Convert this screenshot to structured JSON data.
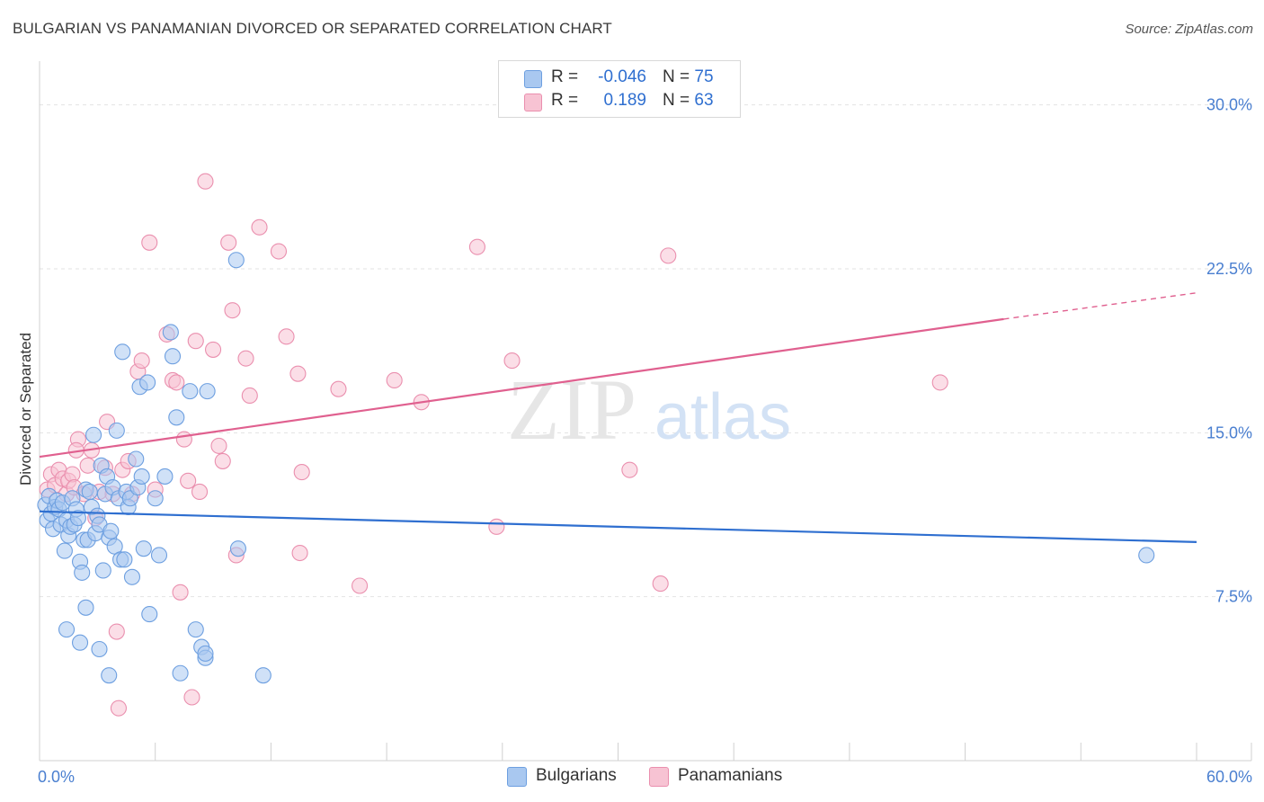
{
  "title": "BULGARIAN VS PANAMANIAN DIVORCED OR SEPARATED CORRELATION CHART",
  "source": "Source: ZipAtlas.com",
  "watermark": {
    "zip": "ZIP",
    "atlas": "atlas"
  },
  "legend": {
    "rows": [
      {
        "r_label": "R =",
        "r_value": "-0.046",
        "n_label": "N =",
        "n_value": "75",
        "color": "#a9c8f0",
        "border": "#6d9fe0"
      },
      {
        "r_label": "R =",
        "r_value": "0.189",
        "n_label": "N =",
        "n_value": "63",
        "color": "#f7c3d3",
        "border": "#ea8fae"
      }
    ]
  },
  "bottom_legend": [
    {
      "label": "Bulgarians",
      "color": "#a9c8f0",
      "border": "#6d9fe0"
    },
    {
      "label": "Panamanians",
      "color": "#f7c3d3",
      "border": "#ea8fae"
    }
  ],
  "chart_data": {
    "type": "scatter",
    "title": "BULGARIAN VS PANAMANIAN DIVORCED OR SEPARATED CORRELATION CHART",
    "xlabel": "",
    "ylabel": "Divorced or Separated",
    "xlim": [
      0,
      60
    ],
    "ylim": [
      0,
      32
    ],
    "x_tick_labels": [
      "0.0%",
      "60.0%"
    ],
    "y_ticks": [
      7.5,
      15.0,
      22.5,
      30.0
    ],
    "y_tick_labels": [
      "7.5%",
      "15.0%",
      "22.5%",
      "30.0%"
    ],
    "grid": "horizontal dashed",
    "legend_position": "top-center",
    "series": [
      {
        "name": "Bulgarians",
        "color": "#6d9fe0",
        "fill": "#a9c8f0",
        "trend": {
          "x": [
            0,
            60
          ],
          "y": [
            11.4,
            10.0
          ],
          "color": "#2f6fd0"
        },
        "points": [
          [
            0.3,
            11.7
          ],
          [
            0.4,
            11.0
          ],
          [
            0.5,
            12.1
          ],
          [
            0.6,
            11.3
          ],
          [
            0.7,
            10.6
          ],
          [
            0.8,
            11.6
          ],
          [
            0.9,
            11.9
          ],
          [
            1.0,
            11.5
          ],
          [
            1.1,
            10.8
          ],
          [
            1.2,
            11.8
          ],
          [
            1.3,
            9.6
          ],
          [
            1.4,
            11.0
          ],
          [
            1.5,
            10.3
          ],
          [
            1.6,
            10.7
          ],
          [
            1.7,
            12.0
          ],
          [
            1.8,
            10.8
          ],
          [
            1.9,
            11.5
          ],
          [
            2.0,
            11.1
          ],
          [
            2.1,
            9.1
          ],
          [
            2.2,
            8.6
          ],
          [
            2.3,
            10.1
          ],
          [
            2.4,
            12.4
          ],
          [
            2.5,
            10.1
          ],
          [
            2.6,
            12.3
          ],
          [
            2.7,
            11.6
          ],
          [
            2.8,
            14.9
          ],
          [
            2.9,
            10.4
          ],
          [
            3.0,
            11.2
          ],
          [
            3.1,
            10.8
          ],
          [
            3.2,
            13.5
          ],
          [
            3.3,
            8.7
          ],
          [
            3.4,
            12.2
          ],
          [
            3.5,
            13.0
          ],
          [
            3.6,
            10.2
          ],
          [
            3.7,
            10.5
          ],
          [
            3.8,
            12.5
          ],
          [
            3.9,
            9.8
          ],
          [
            4.0,
            15.1
          ],
          [
            4.1,
            12.0
          ],
          [
            4.2,
            9.2
          ],
          [
            4.3,
            18.7
          ],
          [
            4.4,
            9.2
          ],
          [
            4.5,
            12.3
          ],
          [
            4.6,
            11.6
          ],
          [
            4.7,
            12.0
          ],
          [
            4.8,
            8.4
          ],
          [
            5.0,
            13.8
          ],
          [
            5.1,
            12.5
          ],
          [
            5.2,
            17.1
          ],
          [
            5.3,
            13.0
          ],
          [
            5.4,
            9.7
          ],
          [
            5.6,
            17.3
          ],
          [
            5.7,
            6.7
          ],
          [
            6.0,
            12.0
          ],
          [
            6.2,
            9.4
          ],
          [
            6.5,
            13.0
          ],
          [
            6.8,
            19.6
          ],
          [
            6.9,
            18.5
          ],
          [
            7.1,
            15.7
          ],
          [
            7.3,
            4.0
          ],
          [
            7.8,
            16.9
          ],
          [
            8.1,
            6.0
          ],
          [
            8.4,
            5.2
          ],
          [
            8.6,
            4.7
          ],
          [
            8.6,
            4.9
          ],
          [
            8.7,
            16.9
          ],
          [
            10.2,
            22.9
          ],
          [
            10.3,
            9.7
          ],
          [
            11.6,
            3.9
          ],
          [
            57.4,
            9.4
          ],
          [
            1.4,
            6.0
          ],
          [
            2.1,
            5.4
          ],
          [
            2.4,
            7.0
          ],
          [
            3.1,
            5.1
          ],
          [
            3.6,
            3.9
          ]
        ]
      },
      {
        "name": "Panamanians",
        "color": "#ea8fae",
        "fill": "#f7c3d3",
        "trend": {
          "x": [
            0,
            50
          ],
          "y": [
            13.9,
            20.2
          ],
          "dashed_to": [
            60,
            21.4
          ],
          "color": "#e0608f"
        },
        "points": [
          [
            0.4,
            12.4
          ],
          [
            0.6,
            13.1
          ],
          [
            0.8,
            12.6
          ],
          [
            1.0,
            13.3
          ],
          [
            1.2,
            12.9
          ],
          [
            1.4,
            12.2
          ],
          [
            1.5,
            12.8
          ],
          [
            1.7,
            13.1
          ],
          [
            1.8,
            12.5
          ],
          [
            2.0,
            14.7
          ],
          [
            2.3,
            12.2
          ],
          [
            2.5,
            13.5
          ],
          [
            2.7,
            14.2
          ],
          [
            2.9,
            11.1
          ],
          [
            3.1,
            12.3
          ],
          [
            3.4,
            13.4
          ],
          [
            3.5,
            15.5
          ],
          [
            3.8,
            12.2
          ],
          [
            4.0,
            5.9
          ],
          [
            4.1,
            2.4
          ],
          [
            4.3,
            13.3
          ],
          [
            4.6,
            13.7
          ],
          [
            4.8,
            12.2
          ],
          [
            5.1,
            17.8
          ],
          [
            5.3,
            18.3
          ],
          [
            5.7,
            23.7
          ],
          [
            6.0,
            12.4
          ],
          [
            6.6,
            19.5
          ],
          [
            6.9,
            17.4
          ],
          [
            7.1,
            17.3
          ],
          [
            7.3,
            7.7
          ],
          [
            7.5,
            14.7
          ],
          [
            7.7,
            12.8
          ],
          [
            7.9,
            2.9
          ],
          [
            8.1,
            19.2
          ],
          [
            8.3,
            12.3
          ],
          [
            8.6,
            26.5
          ],
          [
            9.0,
            18.8
          ],
          [
            9.3,
            14.4
          ],
          [
            9.5,
            13.7
          ],
          [
            9.8,
            23.7
          ],
          [
            10.0,
            20.6
          ],
          [
            10.2,
            9.4
          ],
          [
            10.7,
            18.4
          ],
          [
            10.9,
            16.7
          ],
          [
            11.4,
            24.4
          ],
          [
            12.4,
            23.3
          ],
          [
            12.8,
            19.4
          ],
          [
            13.4,
            17.7
          ],
          [
            13.5,
            9.5
          ],
          [
            13.6,
            13.2
          ],
          [
            15.5,
            17.0
          ],
          [
            16.6,
            8.0
          ],
          [
            18.4,
            17.4
          ],
          [
            19.8,
            16.4
          ],
          [
            22.7,
            23.5
          ],
          [
            23.7,
            10.7
          ],
          [
            24.5,
            18.3
          ],
          [
            30.6,
            13.3
          ],
          [
            32.2,
            8.1
          ],
          [
            32.6,
            23.1
          ],
          [
            46.7,
            17.3
          ],
          [
            1.9,
            14.2
          ]
        ]
      }
    ]
  }
}
